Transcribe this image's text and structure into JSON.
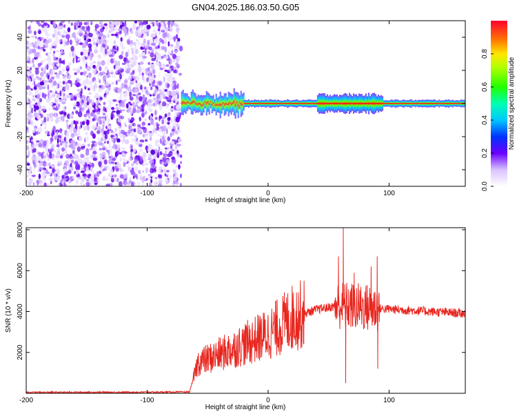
{
  "title": "GN04.2025.186.03.50.G05",
  "chart_data": [
    {
      "type": "heatmap",
      "xlabel": "Height of straight line (km)",
      "ylabel": "Frequency (Hz)",
      "xlim": [
        -200,
        163
      ],
      "ylim": [
        -50,
        50
      ],
      "xticks": [
        -200,
        -100,
        0,
        100
      ],
      "yticks": [
        -40,
        -20,
        0,
        20,
        40
      ],
      "colorbar": {
        "label": "Normalized spectral amplitude",
        "ticks": [
          0.0,
          0.2,
          0.4,
          0.6,
          0.8
        ],
        "range": [
          0,
          1
        ]
      },
      "regions": [
        {
          "x_from": -200,
          "x_to": -72,
          "description_value": 0.15
        },
        {
          "x_from": -72,
          "x_to": -20,
          "center_freq": 0,
          "band_halfwidth": 6,
          "peak": 0.45
        },
        {
          "x_from": -20,
          "x_to": 163,
          "center_freq": 0,
          "band_halfwidth": 3,
          "peak": 0.95
        }
      ]
    },
    {
      "type": "line",
      "xlabel": "Height of straight line (km)",
      "ylabel": "SNR (10 * v/v)",
      "xlim": [
        -200,
        163
      ],
      "ylim": [
        0,
        8100
      ],
      "xticks": [
        -200,
        -100,
        0,
        100
      ],
      "yticks": [
        2000,
        4000,
        6000,
        8000
      ],
      "color": "#e8261f",
      "envelope": [
        {
          "x": -200,
          "y": 30
        },
        {
          "x": -100,
          "y": 40
        },
        {
          "x": -65,
          "y": 50
        },
        {
          "x": -58,
          "y": 1500
        },
        {
          "x": -40,
          "y": 1900
        },
        {
          "x": -20,
          "y": 2400
        },
        {
          "x": 0,
          "y": 2900
        },
        {
          "x": 20,
          "y": 3700
        },
        {
          "x": 40,
          "y": 4100
        },
        {
          "x": 60,
          "y": 4300
        },
        {
          "x": 90,
          "y": 4150
        },
        {
          "x": 120,
          "y": 4050
        },
        {
          "x": 163,
          "y": 3900
        }
      ],
      "spikes": [
        {
          "x": 58,
          "y": 6700
        },
        {
          "x": 62,
          "y": 8100
        },
        {
          "x": 64,
          "y": 500
        },
        {
          "x": 71,
          "y": 5900
        },
        {
          "x": 85,
          "y": 6200
        },
        {
          "x": 90,
          "y": 6700
        },
        {
          "x": 90.5,
          "y": 1200
        }
      ]
    }
  ]
}
